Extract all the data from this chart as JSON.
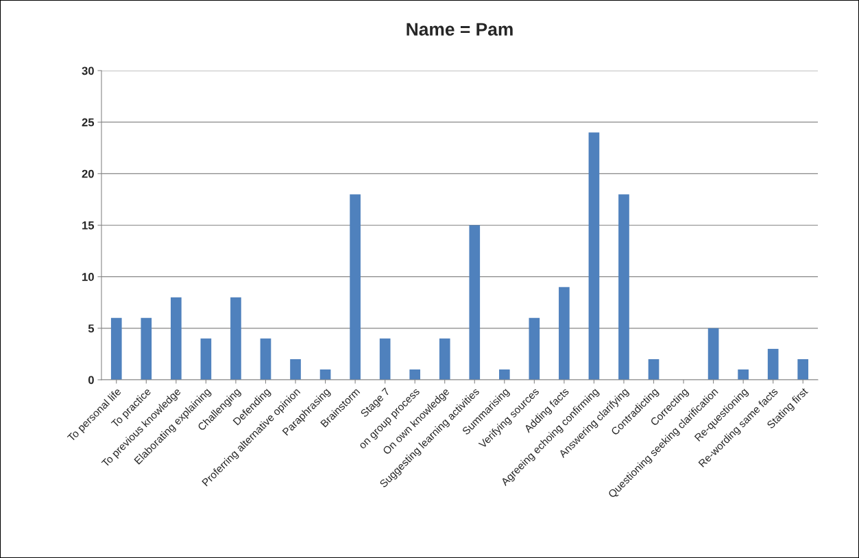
{
  "chart_data": {
    "type": "bar",
    "title": "Name = Pam",
    "categories": [
      "To personal life",
      "To practice",
      "To previous knowledge",
      "Elaborating explaining",
      "Challenging",
      "Defending",
      "Proferring alternative opinion",
      "Paraphrasing",
      "Brainstorm",
      "Stage 7",
      "on group process",
      "On own knowledge",
      "Suggesting learning activities",
      "Summarising",
      "Verifying sources",
      "Adding facts",
      "Agreeing echoing confirming",
      "Answering clarifying",
      "Contradicting",
      "Correcting",
      "Questioning seeking clarification",
      "Re-questioning",
      "Re-wording same facts",
      "Stating first"
    ],
    "values": [
      6,
      6,
      8,
      4,
      8,
      4,
      2,
      1,
      18,
      4,
      1,
      4,
      15,
      1,
      6,
      9,
      24,
      18,
      2,
      0,
      5,
      1,
      3,
      2
    ],
    "color": "#4f81bd",
    "ylim": [
      0,
      30
    ],
    "yticks": [
      0,
      5,
      10,
      15,
      20,
      25,
      30
    ],
    "grid": "y"
  }
}
